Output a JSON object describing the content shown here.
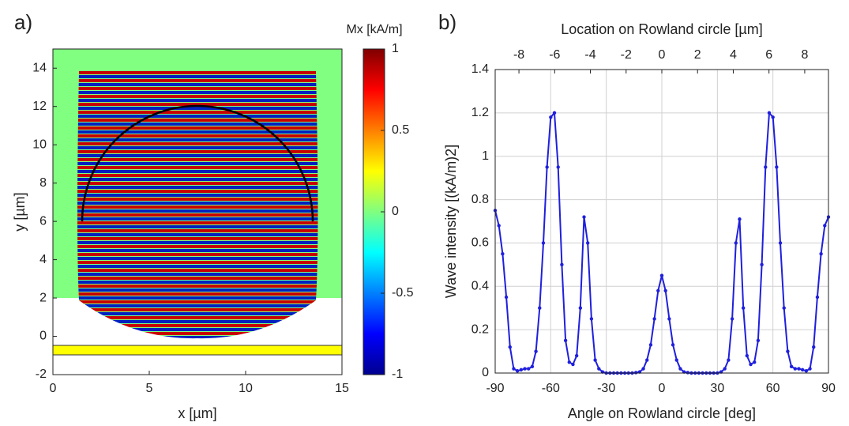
{
  "chart_data": [
    {
      "type": "heatmap",
      "panel": "a)",
      "xlabel": "x [µm]",
      "ylabel": "y [µm]",
      "xlim": [
        0,
        15
      ],
      "xticks": [
        0,
        5,
        10,
        15
      ],
      "ylim": [
        -2,
        15
      ],
      "yticks": [
        -2,
        0,
        2,
        4,
        6,
        8,
        10,
        12,
        14
      ],
      "colorbar_label": "Mx [kA/m]",
      "clim": [
        -1,
        1
      ],
      "cticks": [
        -1,
        -0.5,
        0,
        0.5,
        1
      ]
    },
    {
      "type": "line",
      "panel": "b)",
      "xlabel": "Angle on Rowland circle [deg]",
      "ylabel": "Wave intensity [(kA/m)2]",
      "x2label": "Location on Rowland circle [µm]",
      "xlim": [
        -90,
        90
      ],
      "xticks": [
        -90,
        -60,
        -30,
        0,
        30,
        60,
        90
      ],
      "x2lim": [
        -9.33,
        9.33
      ],
      "x2ticks": [
        -8,
        -6,
        -4,
        -2,
        0,
        2,
        4,
        6,
        8
      ],
      "ylim": [
        0,
        1.4
      ],
      "yticks": [
        0,
        0.2,
        0.4,
        0.6,
        0.8,
        1,
        1.2,
        1.4
      ],
      "grid": true,
      "color": "#1f1fdd",
      "x": [
        -90,
        -88,
        -86,
        -84,
        -82,
        -80,
        -78,
        -76,
        -74,
        -72,
        -70,
        -68,
        -66,
        -64,
        -62,
        -60,
        -58,
        -56,
        -54,
        -52,
        -50,
        -48,
        -46,
        -44,
        -42,
        -40,
        -38,
        -36,
        -34,
        -32,
        -30,
        -28,
        -26,
        -24,
        -22,
        -20,
        -18,
        -16,
        -14,
        -12,
        -10,
        -8,
        -6,
        -4,
        -2,
        0,
        2,
        4,
        6,
        8,
        10,
        12,
        14,
        16,
        18,
        20,
        22,
        24,
        26,
        28,
        30,
        32,
        34,
        36,
        38,
        40,
        42,
        44,
        46,
        48,
        50,
        52,
        54,
        56,
        58,
        60,
        62,
        64,
        66,
        68,
        70,
        72,
        74,
        76,
        78,
        80,
        82,
        84,
        86,
        88,
        90
      ],
      "values": [
        0.75,
        0.68,
        0.55,
        0.35,
        0.12,
        0.02,
        0.01,
        0.015,
        0.02,
        0.02,
        0.03,
        0.1,
        0.3,
        0.6,
        0.95,
        1.18,
        1.2,
        0.95,
        0.5,
        0.15,
        0.05,
        0.04,
        0.08,
        0.3,
        0.72,
        0.6,
        0.25,
        0.06,
        0.02,
        0.005,
        0,
        0,
        0,
        0,
        0,
        0,
        0,
        0,
        0.002,
        0.005,
        0.02,
        0.06,
        0.13,
        0.25,
        0.38,
        0.45,
        0.38,
        0.25,
        0.13,
        0.06,
        0.02,
        0.005,
        0.002,
        0,
        0,
        0,
        0,
        0,
        0,
        0,
        0,
        0.005,
        0.02,
        0.06,
        0.25,
        0.6,
        0.71,
        0.3,
        0.08,
        0.04,
        0.05,
        0.15,
        0.5,
        0.95,
        1.2,
        1.18,
        0.95,
        0.6,
        0.3,
        0.1,
        0.03,
        0.02,
        0.02,
        0.015,
        0.01,
        0.02,
        0.12,
        0.35,
        0.55,
        0.68,
        0.72
      ]
    }
  ]
}
